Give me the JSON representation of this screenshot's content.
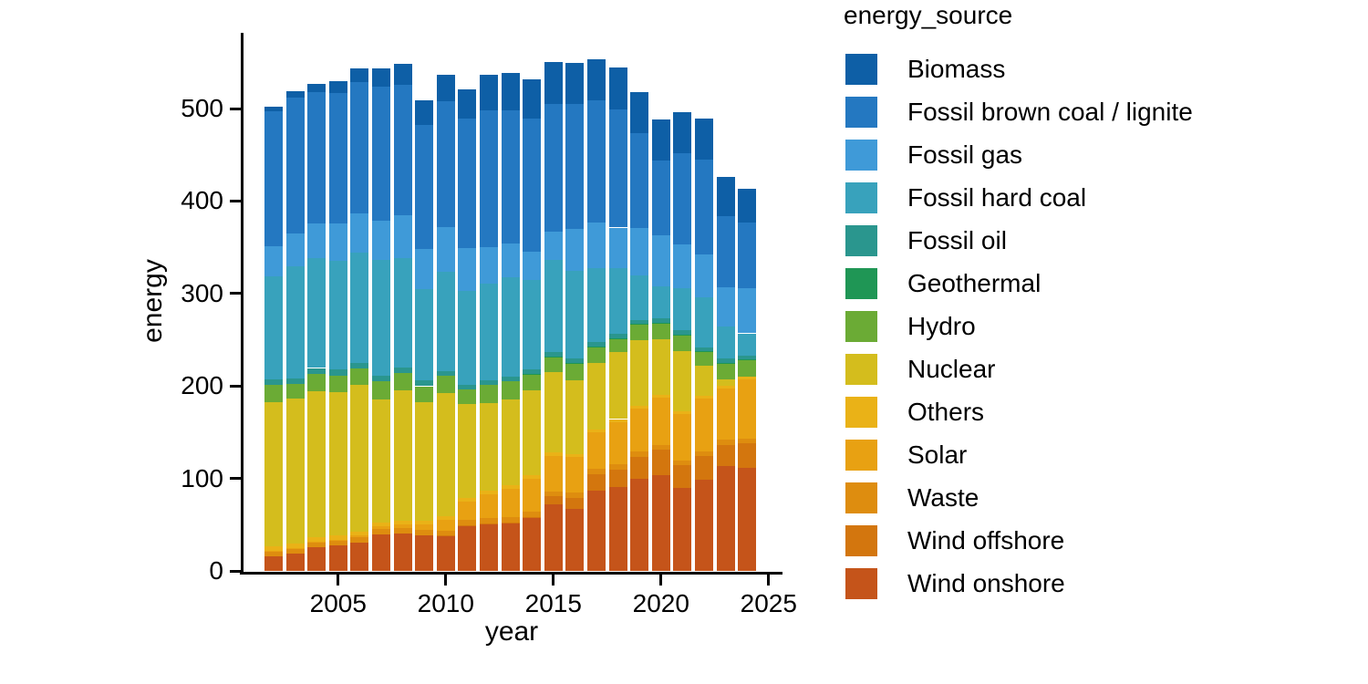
{
  "chart_data": {
    "type": "bar",
    "stacked": true,
    "title": "",
    "xlabel": "year",
    "ylabel": "energy",
    "legend_title": "energy_source",
    "legend_position": "right",
    "grid": false,
    "x": [
      2002,
      2003,
      2004,
      2005,
      2006,
      2007,
      2008,
      2009,
      2010,
      2011,
      2012,
      2013,
      2014,
      2015,
      2016,
      2017,
      2018,
      2019,
      2020,
      2021,
      2022,
      2023,
      2024
    ],
    "xticks": [
      2005,
      2010,
      2015,
      2020,
      2025
    ],
    "yticks": [
      0,
      100,
      200,
      300,
      400,
      500
    ],
    "ylim": [
      0,
      575
    ],
    "xlim": [
      2001,
      2025.5
    ],
    "stack_order_note": "first series drawn at top of stack; last series (Wind onshore) at bottom",
    "series": [
      {
        "name": "Biomass",
        "color": "#0e5fa6",
        "values": [
          4.7,
          6.7,
          9.4,
          13.4,
          15.6,
          19.7,
          22.7,
          25.9,
          29.1,
          31.9,
          38.8,
          40.1,
          42.2,
          44.6,
          45.0,
          45.0,
          44.7,
          44.4,
          45.1,
          43.8,
          44.0,
          42.3,
          36.0
        ]
      },
      {
        "name": "Fossil brown coal / lignite",
        "color": "#2478c1",
        "values": [
          146,
          147,
          142,
          141,
          142,
          145,
          141,
          135,
          135.5,
          140,
          148,
          144,
          144,
          139,
          135,
          132,
          128,
          102,
          80.5,
          99,
          103,
          77,
          71
        ]
      },
      {
        "name": "Fossil gas",
        "color": "#3f9ad8",
        "values": [
          32,
          36,
          37,
          40,
          42,
          43,
          46,
          43,
          49,
          46.5,
          39,
          37,
          31,
          30,
          45,
          49,
          44,
          52,
          55,
          47,
          46,
          42,
          49
        ]
      },
      {
        "name": "Fossil hard coal",
        "color": "#38a2bc",
        "values": [
          112,
          121,
          119,
          118,
          119,
          125,
          119,
          99,
          107,
          101,
          105,
          107,
          97,
          100,
          95,
          80,
          71,
          48,
          35,
          46,
          54,
          35,
          24
        ]
      },
      {
        "name": "Fossil oil",
        "color": "#2a968e",
        "values": [
          6,
          6,
          6,
          6,
          6,
          6,
          5.5,
          6,
          5,
          5,
          5,
          5,
          4.5,
          4.5,
          4.5,
          4.5,
          4.5,
          4.3,
          4.2,
          4.3,
          4.4,
          4.2,
          4.1
        ]
      },
      {
        "name": "Geothermal",
        "color": "#1f9655",
        "values": [
          0.02,
          0.02,
          0.02,
          0.02,
          0.02,
          0.02,
          0.02,
          0.02,
          0.03,
          0.02,
          0.03,
          0.03,
          0.1,
          0.1,
          0.2,
          0.2,
          0.2,
          0.2,
          0.2,
          0.2,
          0.2,
          0.2,
          0.2
        ]
      },
      {
        "name": "Hydro",
        "color": "#6bab35",
        "values": [
          18.4,
          15.8,
          18.9,
          18.5,
          17.7,
          19.1,
          18.4,
          17.5,
          18.6,
          15.5,
          19.4,
          20.3,
          17.6,
          16.9,
          18.5,
          17.7,
          15.1,
          17.2,
          17.6,
          17.7,
          15.3,
          18.0,
          19.0
        ]
      },
      {
        "name": "Nuclear",
        "color": "#d4bd1d",
        "values": [
          156.3,
          156.9,
          158.4,
          154.6,
          158.7,
          133.2,
          140.9,
          127.7,
          133.0,
          102.3,
          94.2,
          92.1,
          91.8,
          86.8,
          80.0,
          72.2,
          72.3,
          71.1,
          60.9,
          65.4,
          32.8,
          6.7,
          0
        ]
      },
      {
        "name": "Others",
        "color": "#eab217",
        "values": [
          4.6,
          4.6,
          4.5,
          4.4,
          4.4,
          4.3,
          4.2,
          3.8,
          4.2,
          4.0,
          3.9,
          3.8,
          3.6,
          3.5,
          3.4,
          3.3,
          3.1,
          2.9,
          2.8,
          2.9,
          2.8,
          2.6,
          2.5
        ]
      },
      {
        "name": "Solar",
        "color": "#e8a112",
        "values": [
          0.2,
          0.3,
          0.6,
          1.3,
          2.2,
          3.1,
          4.4,
          6.6,
          11.7,
          19.6,
          26.4,
          31.0,
          36.1,
          38.7,
          38.1,
          39.4,
          45.8,
          46.4,
          50.7,
          50.0,
          57.0,
          55.7,
          64.0
        ]
      },
      {
        "name": "Waste",
        "color": "#de8d0f",
        "values": [
          5.5,
          5.5,
          5.5,
          5.5,
          5.5,
          5.5,
          5.5,
          5.5,
          5.5,
          5.5,
          5.5,
          5.5,
          5.5,
          5.5,
          5.5,
          5.5,
          5.5,
          5.5,
          5.5,
          5.5,
          5.5,
          5.5,
          5.5
        ]
      },
      {
        "name": "Wind offshore",
        "color": "#d3760e",
        "values": [
          0,
          0,
          0,
          0,
          0,
          0,
          0,
          0,
          0.2,
          0.6,
          0.7,
          0.9,
          1.4,
          8.2,
          12.1,
          17.7,
          19.3,
          24.4,
          27.3,
          24.4,
          24.8,
          23.5,
          25.7
        ]
      },
      {
        "name": "Wind onshore",
        "color": "#c5541a",
        "values": [
          15.9,
          18.9,
          25.5,
          27.2,
          30.7,
          39.7,
          40.6,
          38.6,
          37.8,
          48.9,
          50.7,
          51.7,
          57.0,
          72.2,
          67.2,
          87.0,
          90.5,
          99.2,
          103.7,
          89.6,
          99.0,
          113.0,
          111.9
        ]
      }
    ]
  },
  "axes": {
    "x_title": "year",
    "y_title": "energy",
    "ytick_labels": [
      "0",
      "100",
      "200",
      "300",
      "400",
      "500"
    ],
    "xtick_labels": [
      "2005",
      "2010",
      "2015",
      "2020",
      "2025"
    ]
  }
}
